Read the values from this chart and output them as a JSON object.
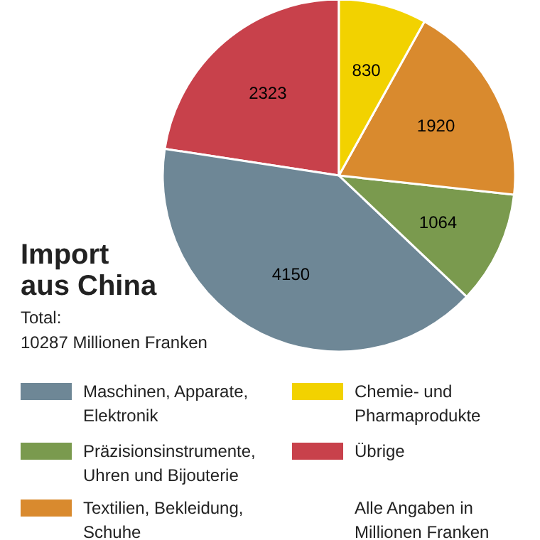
{
  "chart_data": {
    "type": "pie",
    "title": "Import\naus China",
    "subtitle": "Total:\n10287 Millionen Franken",
    "categories": [
      "Maschinen, Apparate,\nElektronik",
      "Präzisionsinstrumente,\nUhren und Bijouterie",
      "Textilien, Bekleidung,\nSchuhe",
      "Chemie- und\nPharmaprodukte",
      "Übrige"
    ],
    "values": [
      4150,
      1064,
      1920,
      830,
      2323
    ],
    "colors": [
      "#6e8796",
      "#7a9a4e",
      "#d98a2e",
      "#f2d200",
      "#c8414b"
    ],
    "data_labels": true,
    "legend": "bottom",
    "annotations": [
      "Alle Angaben in\nMillionen Franken"
    ]
  }
}
